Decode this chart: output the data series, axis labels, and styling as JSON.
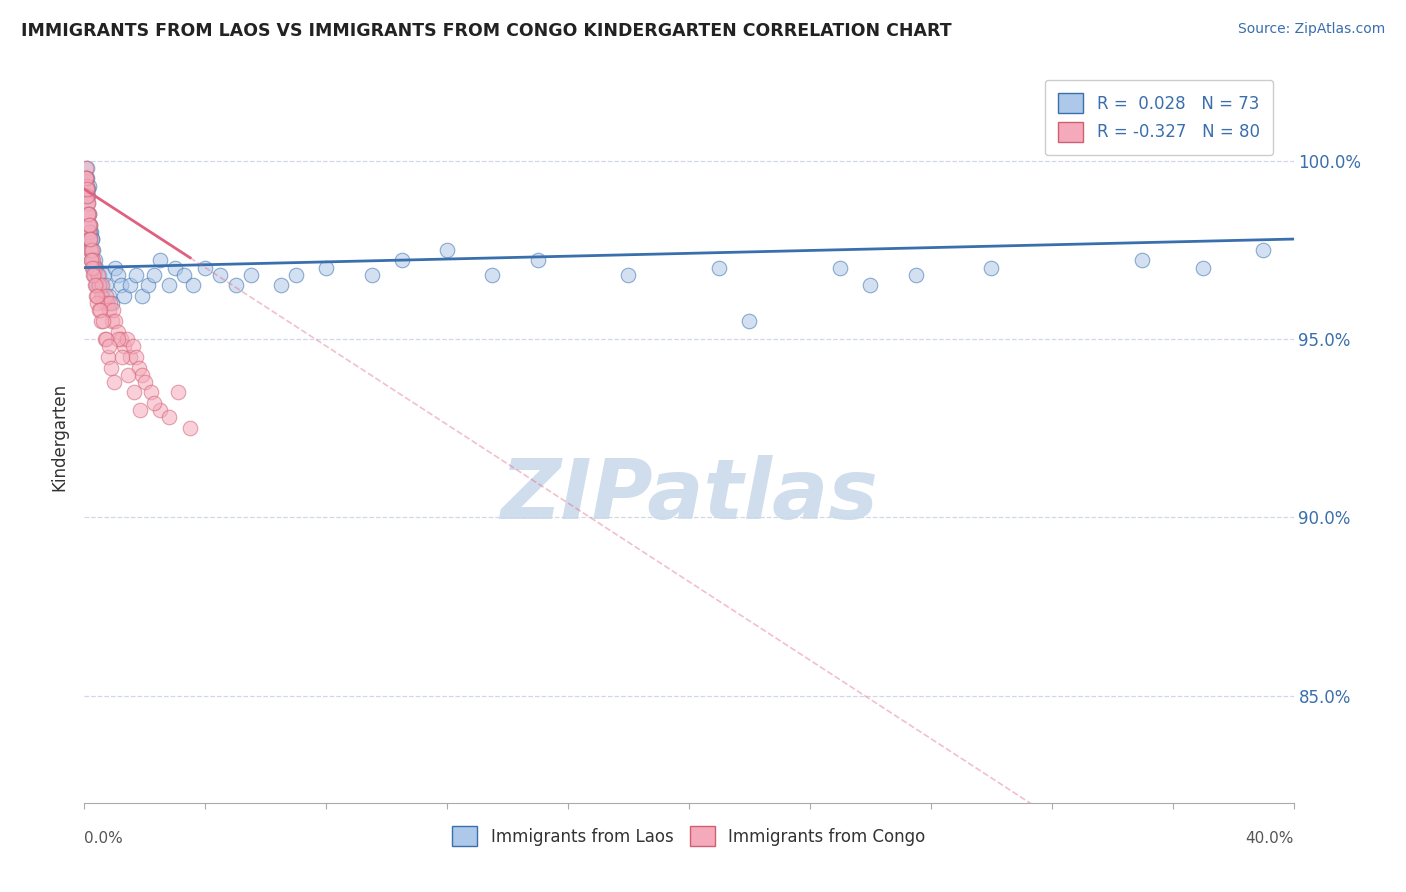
{
  "title": "IMMIGRANTS FROM LAOS VS IMMIGRANTS FROM CONGO KINDERGARTEN CORRELATION CHART",
  "source": "Source: ZipAtlas.com",
  "ylabel": "Kindergarten",
  "y_ticks": [
    85.0,
    90.0,
    95.0,
    100.0
  ],
  "y_tick_labels": [
    "85.0%",
    "90.0%",
    "95.0%",
    "100.0%"
  ],
  "x_range": [
    0.0,
    40.0
  ],
  "y_range": [
    82.0,
    102.5
  ],
  "laos_R": 0.028,
  "laos_N": 73,
  "congo_R": -0.327,
  "congo_N": 80,
  "laos_color": "#adc8e8",
  "congo_color": "#f5aabb",
  "laos_line_color": "#3a6fad",
  "congo_line_color": "#e06080",
  "watermark": "ZIPatlas",
  "watermark_color": "#c8d8ea",
  "laos_x": [
    0.05,
    0.08,
    0.1,
    0.1,
    0.12,
    0.13,
    0.14,
    0.15,
    0.16,
    0.17,
    0.18,
    0.2,
    0.22,
    0.23,
    0.25,
    0.28,
    0.3,
    0.33,
    0.35,
    0.38,
    0.4,
    0.42,
    0.45,
    0.5,
    0.55,
    0.6,
    0.65,
    0.7,
    0.8,
    0.9,
    1.0,
    1.1,
    1.2,
    1.3,
    1.5,
    1.7,
    1.9,
    2.1,
    2.3,
    2.5,
    2.8,
    3.0,
    3.3,
    3.6,
    4.0,
    4.5,
    5.0,
    5.5,
    6.5,
    7.0,
    8.0,
    9.5,
    10.5,
    12.0,
    13.5,
    15.0,
    18.0,
    21.0,
    22.0,
    25.0,
    26.0,
    27.5,
    30.0,
    35.0,
    37.0,
    39.0,
    0.06,
    0.09,
    0.11,
    0.19,
    0.24,
    0.32,
    0.48
  ],
  "laos_y": [
    99.5,
    99.8,
    99.2,
    98.8,
    99.0,
    98.5,
    99.3,
    98.0,
    98.5,
    97.8,
    98.2,
    97.5,
    98.0,
    97.2,
    97.8,
    97.0,
    97.5,
    96.8,
    97.2,
    96.5,
    97.0,
    96.8,
    96.5,
    96.8,
    96.5,
    96.2,
    96.8,
    96.5,
    96.2,
    96.0,
    97.0,
    96.8,
    96.5,
    96.2,
    96.5,
    96.8,
    96.2,
    96.5,
    96.8,
    97.2,
    96.5,
    97.0,
    96.8,
    96.5,
    97.0,
    96.8,
    96.5,
    96.8,
    96.5,
    96.8,
    97.0,
    96.8,
    97.2,
    97.5,
    96.8,
    97.2,
    96.8,
    97.0,
    95.5,
    97.0,
    96.5,
    96.8,
    97.0,
    97.2,
    97.0,
    97.5,
    99.0,
    99.5,
    99.2,
    98.0,
    97.8,
    97.0,
    96.5
  ],
  "congo_x": [
    0.04,
    0.06,
    0.07,
    0.08,
    0.09,
    0.1,
    0.11,
    0.12,
    0.13,
    0.14,
    0.15,
    0.16,
    0.17,
    0.18,
    0.19,
    0.2,
    0.22,
    0.24,
    0.26,
    0.28,
    0.3,
    0.33,
    0.36,
    0.4,
    0.45,
    0.5,
    0.55,
    0.6,
    0.65,
    0.7,
    0.75,
    0.8,
    0.85,
    0.9,
    0.95,
    1.0,
    1.1,
    1.2,
    1.3,
    1.4,
    1.5,
    1.6,
    1.7,
    1.8,
    1.9,
    2.0,
    2.2,
    2.5,
    2.8,
    3.1,
    0.05,
    0.08,
    0.1,
    0.13,
    0.15,
    0.18,
    0.22,
    0.25,
    0.3,
    0.38,
    0.42,
    0.48,
    0.55,
    0.68,
    0.78,
    0.88,
    0.98,
    1.1,
    1.25,
    1.45,
    1.65,
    1.85,
    0.35,
    0.42,
    0.52,
    0.62,
    0.72,
    0.82,
    2.3,
    3.5
  ],
  "congo_y": [
    99.8,
    99.5,
    99.5,
    99.2,
    99.0,
    99.3,
    98.8,
    98.5,
    98.8,
    98.2,
    98.5,
    98.0,
    97.8,
    98.2,
    97.5,
    97.8,
    97.5,
    97.2,
    97.5,
    97.0,
    97.2,
    96.8,
    97.0,
    96.5,
    96.8,
    96.5,
    96.2,
    96.5,
    96.0,
    96.2,
    96.0,
    95.8,
    96.0,
    95.5,
    95.8,
    95.5,
    95.2,
    95.0,
    94.8,
    95.0,
    94.5,
    94.8,
    94.5,
    94.2,
    94.0,
    93.8,
    93.5,
    93.0,
    92.8,
    93.5,
    99.5,
    99.0,
    99.2,
    98.5,
    98.2,
    97.8,
    97.2,
    97.0,
    96.8,
    96.2,
    96.0,
    95.8,
    95.5,
    95.0,
    94.5,
    94.2,
    93.8,
    95.0,
    94.5,
    94.0,
    93.5,
    93.0,
    96.5,
    96.2,
    95.8,
    95.5,
    95.0,
    94.8,
    93.2,
    92.5
  ]
}
